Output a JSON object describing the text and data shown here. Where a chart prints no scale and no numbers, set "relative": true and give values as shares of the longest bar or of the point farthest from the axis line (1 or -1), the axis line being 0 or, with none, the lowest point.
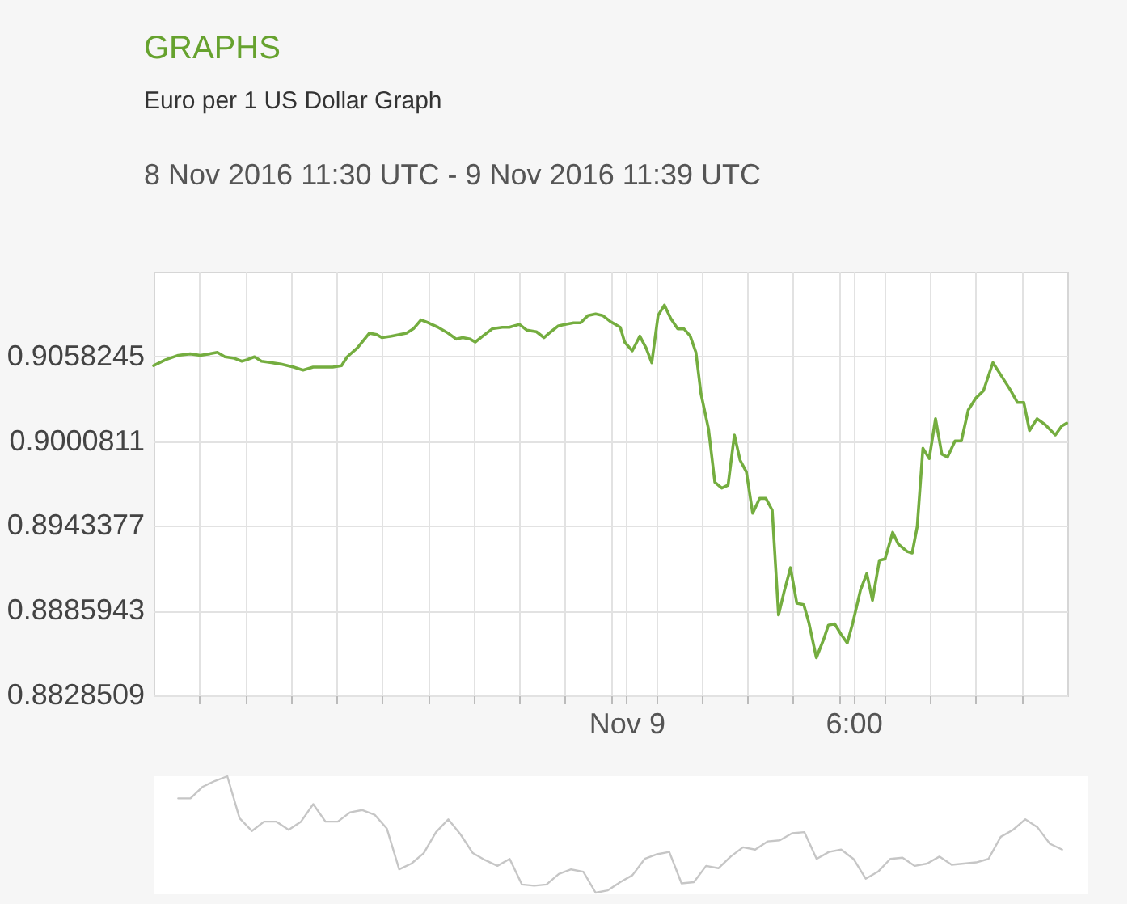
{
  "chart_data": [
    {
      "type": "line",
      "title": "GRAPHS",
      "subtitle": "Euro per 1 US Dollar Graph",
      "annotations": [
        "8 Nov 2016 11:30 UTC - 9 Nov 2016 11:39 UTC"
      ],
      "x": [
        "2016-11-08T11:30",
        "2016-11-08T11:49",
        "2016-11-08T12:09",
        "2016-11-08T12:28",
        "2016-11-08T12:44",
        "2016-11-08T12:59",
        "2016-11-08T13:11",
        "2016-11-08T13:23",
        "2016-11-08T13:38",
        "2016-11-08T13:50",
        "2016-11-08T13:58",
        "2016-11-08T14:10",
        "2016-11-08T14:21",
        "2016-11-08T14:37",
        "2016-11-08T14:52",
        "2016-11-08T15:12",
        "2016-11-08T15:27",
        "2016-11-08T15:43",
        "2016-11-08T16:02",
        "2016-11-08T16:14",
        "2016-11-08T16:28",
        "2016-11-08T16:37",
        "2016-11-08T16:53",
        "2016-11-08T17:12",
        "2016-11-08T17:24",
        "2016-11-08T17:32",
        "2016-11-08T17:47",
        "2016-11-08T18:11",
        "2016-11-08T18:22",
        "2016-11-08T18:34",
        "2016-11-08T18:46",
        "2016-11-08T19:01",
        "2016-11-08T19:17",
        "2016-11-08T19:30",
        "2016-11-08T19:40",
        "2016-11-08T19:52",
        "2016-11-08T20:00",
        "2016-11-08T20:12",
        "2016-11-08T20:27",
        "2016-11-08T20:43",
        "2016-11-08T20:54",
        "2016-11-08T21:10",
        "2016-11-08T21:22",
        "2016-11-08T21:37",
        "2016-11-08T21:49",
        "2016-11-08T22:00",
        "2016-11-08T22:12",
        "2016-11-08T22:24",
        "2016-11-08T22:36",
        "2016-11-08T22:47",
        "2016-11-08T22:59",
        "2016-11-08T23:11",
        "2016-11-08T23:22",
        "2016-11-08T23:34",
        "2016-11-08T23:50",
        "2016-11-08T23:57",
        "2016-11-09T00:09",
        "2016-11-09T00:21",
        "2016-11-09T00:31",
        "2016-11-09T00:40",
        "2016-11-09T00:50",
        "2016-11-09T01:00",
        "2016-11-09T01:10",
        "2016-11-09T01:21",
        "2016-11-09T01:31",
        "2016-11-09T01:41",
        "2016-11-09T01:50",
        "2016-11-09T01:58",
        "2016-11-09T02:10",
        "2016-11-09T02:20",
        "2016-11-09T02:31",
        "2016-11-09T02:41",
        "2016-11-09T02:51",
        "2016-11-09T03:00",
        "2016-11-09T03:10",
        "2016-11-09T03:20",
        "2016-11-09T03:31",
        "2016-11-09T03:41",
        "2016-11-09T03:51",
        "2016-11-09T04:01",
        "2016-11-09T04:10",
        "2016-11-09T04:20",
        "2016-11-09T04:30",
        "2016-11-09T04:41",
        "2016-11-09T04:49",
        "2016-11-09T05:01",
        "2016-11-09T05:13",
        "2016-11-09T05:20",
        "2016-11-09T05:30",
        "2016-11-09T05:40",
        "2016-11-09T05:50",
        "2016-11-09T05:59",
        "2016-11-09T06:11",
        "2016-11-09T06:21",
        "2016-11-09T06:30",
        "2016-11-09T06:41",
        "2016-11-09T06:50",
        "2016-11-09T07:02",
        "2016-11-09T07:11",
        "2016-11-09T07:25",
        "2016-11-09T07:33",
        "2016-11-09T07:41",
        "2016-11-09T07:50",
        "2016-11-09T08:00",
        "2016-11-09T08:10",
        "2016-11-09T08:20",
        "2016-11-09T08:29",
        "2016-11-09T08:41",
        "2016-11-09T08:51",
        "2016-11-09T09:02",
        "2016-11-09T09:14",
        "2016-11-09T09:26",
        "2016-11-09T09:41",
        "2016-11-09T09:53",
        "2016-11-09T10:08",
        "2016-11-09T10:20",
        "2016-11-09T10:30",
        "2016-11-09T10:39",
        "2016-11-09T10:51",
        "2016-11-09T11:04",
        "2016-11-09T11:20",
        "2016-11-09T11:30",
        "2016-11-09T11:38"
      ],
      "series": [
        {
          "color": "#74ad3f",
          "values": [
            0.9052,
            0.9056,
            0.9059,
            0.906,
            0.9059,
            0.906,
            0.9061,
            0.9058,
            0.9057,
            0.9055,
            0.9056,
            0.9058,
            0.9055,
            0.9054,
            0.9053,
            0.9051,
            0.9049,
            0.9051,
            0.9051,
            0.9051,
            0.9052,
            0.9058,
            0.9064,
            0.9074,
            0.9073,
            0.9071,
            0.9072,
            0.9074,
            0.9077,
            0.9083,
            0.9081,
            0.9078,
            0.9074,
            0.907,
            0.9071,
            0.907,
            0.9068,
            0.9072,
            0.9077,
            0.9078,
            0.9078,
            0.908,
            0.9076,
            0.9075,
            0.9071,
            0.9075,
            0.9079,
            0.908,
            0.9081,
            0.9081,
            0.9086,
            0.9087,
            0.9086,
            0.9082,
            0.9078,
            0.9068,
            0.9062,
            0.9072,
            0.9064,
            0.9054,
            0.9086,
            0.9093,
            0.9084,
            0.9077,
            0.9077,
            0.9072,
            0.9061,
            0.9033,
            0.9009,
            0.8973,
            0.8969,
            0.8971,
            0.9005,
            0.8988,
            0.898,
            0.8952,
            0.8962,
            0.8962,
            0.8954,
            0.8883,
            0.8899,
            0.8915,
            0.8891,
            0.889,
            0.8878,
            0.8854,
            0.8867,
            0.8876,
            0.8877,
            0.887,
            0.8864,
            0.8878,
            0.89,
            0.8911,
            0.8893,
            0.892,
            0.8921,
            0.8939,
            0.8931,
            0.8926,
            0.8925,
            0.8943,
            0.8996,
            0.8989,
            0.9016,
            0.8992,
            0.899,
            0.9001,
            0.9001,
            0.9022,
            0.903,
            0.9035,
            0.9054,
            0.9046,
            0.9036,
            0.9027,
            0.9027,
            0.9008,
            0.9016,
            0.9012,
            0.9005,
            0.9011,
            0.9013
          ]
        }
      ],
      "xlim": [
        "2016-11-08T11:30",
        "2016-11-09T11:39"
      ],
      "xticks": [
        {
          "value": "2016-11-08T12:42",
          "label": null
        },
        {
          "value": "2016-11-08T13:55",
          "label": null
        },
        {
          "value": "2016-11-08T15:07",
          "label": null
        },
        {
          "value": "2016-11-08T16:20",
          "label": null
        },
        {
          "value": "2016-11-08T17:32",
          "label": null
        },
        {
          "value": "2016-11-08T18:45",
          "label": null
        },
        {
          "value": "2016-11-08T19:57",
          "label": null
        },
        {
          "value": "2016-11-08T21:10",
          "label": null
        },
        {
          "value": "2016-11-08T22:22",
          "label": null
        },
        {
          "value": "2016-11-08T23:35",
          "label": null
        },
        {
          "value": "2016-11-09T00:00",
          "label": "Nov 9"
        },
        {
          "value": "2016-11-09T00:47",
          "label": null
        },
        {
          "value": "2016-11-09T01:59",
          "label": null
        },
        {
          "value": "2016-11-09T03:12",
          "label": null
        },
        {
          "value": "2016-11-09T04:24",
          "label": null
        },
        {
          "value": "2016-11-09T05:37",
          "label": null
        },
        {
          "value": "2016-11-09T06:00",
          "label": "6:00"
        },
        {
          "value": "2016-11-09T06:49",
          "label": null
        },
        {
          "value": "2016-11-09T08:02",
          "label": null
        },
        {
          "value": "2016-11-09T09:14",
          "label": null
        },
        {
          "value": "2016-11-09T10:27",
          "label": null
        }
      ],
      "ylim": [
        0.8828509,
        0.9115679
      ],
      "yticks": [
        0.8828509,
        0.8885943,
        0.8943377,
        0.9000811,
        0.9058245
      ],
      "grid": true
    },
    {
      "type": "line",
      "relative": true,
      "tick_labels": false,
      "categories": [
        null,
        null,
        null,
        null,
        null,
        null,
        null,
        null,
        null,
        null,
        null,
        null,
        null,
        null,
        null,
        null,
        null,
        null,
        null,
        null,
        null,
        null,
        null,
        null,
        null,
        null,
        null,
        null,
        null,
        null,
        null,
        null,
        null,
        null,
        null,
        null,
        null,
        null,
        null,
        null,
        null,
        null,
        null,
        null,
        null,
        null,
        null,
        null,
        null,
        null,
        null,
        null,
        null,
        null,
        null,
        null,
        null,
        null,
        null,
        null,
        null,
        null,
        null,
        null,
        null,
        null,
        null,
        null,
        null,
        null,
        null,
        null,
        null
      ],
      "series": [
        {
          "color": "#c6c6c6",
          "values": [
            0.81,
            0.81,
            0.91,
            0.96,
            1.0,
            0.64,
            0.53,
            0.61,
            0.61,
            0.54,
            0.61,
            0.76,
            0.61,
            0.61,
            0.69,
            0.71,
            0.67,
            0.55,
            0.2,
            0.25,
            0.34,
            0.52,
            0.63,
            0.5,
            0.34,
            0.28,
            0.23,
            0.29,
            0.07,
            0.06,
            0.07,
            0.16,
            0.2,
            0.18,
            0.0,
            0.02,
            0.09,
            0.15,
            0.29,
            0.33,
            0.35,
            0.08,
            0.09,
            0.23,
            0.21,
            0.31,
            0.39,
            0.37,
            0.44,
            0.45,
            0.51,
            0.52,
            0.29,
            0.35,
            0.37,
            0.29,
            0.12,
            0.18,
            0.29,
            0.3,
            0.23,
            0.25,
            0.31,
            0.24,
            0.25,
            0.26,
            0.29,
            0.48,
            0.54,
            0.63,
            0.56,
            0.42,
            0.37
          ]
        }
      ]
    }
  ]
}
